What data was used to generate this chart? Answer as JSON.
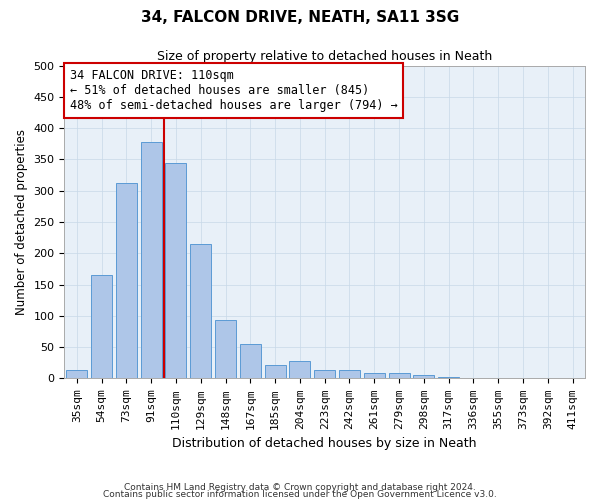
{
  "title1": "34, FALCON DRIVE, NEATH, SA11 3SG",
  "title2": "Size of property relative to detached houses in Neath",
  "xlabel": "Distribution of detached houses by size in Neath",
  "ylabel": "Number of detached properties",
  "categories": [
    "35sqm",
    "54sqm",
    "73sqm",
    "91sqm",
    "110sqm",
    "129sqm",
    "148sqm",
    "167sqm",
    "185sqm",
    "204sqm",
    "223sqm",
    "242sqm",
    "261sqm",
    "279sqm",
    "298sqm",
    "317sqm",
    "336sqm",
    "355sqm",
    "373sqm",
    "392sqm",
    "411sqm"
  ],
  "values": [
    13,
    165,
    313,
    378,
    345,
    215,
    93,
    55,
    22,
    28,
    14,
    14,
    9,
    8,
    5,
    3,
    1,
    0,
    0,
    1,
    0
  ],
  "bar_color": "#aec6e8",
  "bar_edge_color": "#5b9bd5",
  "vline_color": "#cc0000",
  "annotation_text": "34 FALCON DRIVE: 110sqm\n← 51% of detached houses are smaller (845)\n48% of semi-detached houses are larger (794) →",
  "annotation_box_color": "#cc0000",
  "ylim": [
    0,
    500
  ],
  "yticks": [
    0,
    50,
    100,
    150,
    200,
    250,
    300,
    350,
    400,
    450,
    500
  ],
  "grid_color": "#c8d8e8",
  "bg_color": "#e8f0f8",
  "footer1": "Contains HM Land Registry data © Crown copyright and database right 2024.",
  "footer2": "Contains public sector information licensed under the Open Government Licence v3.0."
}
